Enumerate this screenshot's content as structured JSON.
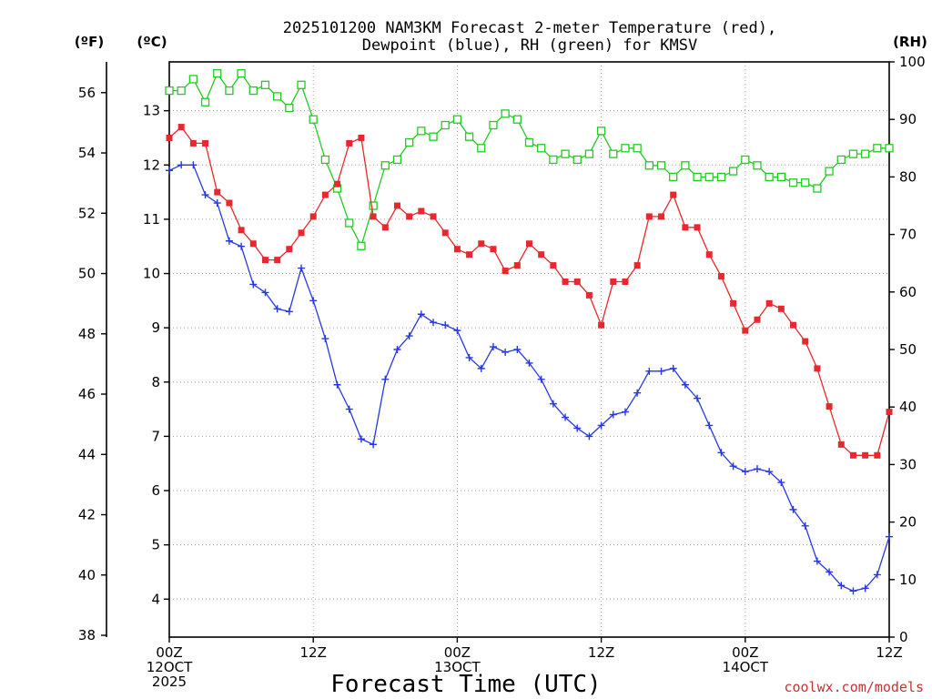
{
  "chart_data": {
    "type": "line",
    "title_line1": "2025101200 NAM3KM Forecast 2-meter Temperature (red),",
    "title_line2": "Dewpoint (blue), RH (green) for KMSV",
    "xlabel": "Forecast Time (UTC)",
    "credit": "coolwx.com/models",
    "units": {
      "fahrenheit": "(ºF)",
      "celsius": "(ºC)",
      "rh": "(RH)"
    },
    "colors": {
      "temperature": "#e8282e",
      "dewpoint": "#2838e0",
      "rh": "#22cc22"
    },
    "x_range_hours": [
      0,
      60
    ],
    "x_ticks": [
      {
        "hour": 0,
        "lines": [
          "00Z",
          "12OCT",
          "2025"
        ]
      },
      {
        "hour": 12,
        "lines": [
          "12Z"
        ]
      },
      {
        "hour": 24,
        "lines": [
          "00Z",
          "13OCT"
        ]
      },
      {
        "hour": 36,
        "lines": [
          "12Z"
        ]
      },
      {
        "hour": 48,
        "lines": [
          "00Z",
          "14OCT"
        ]
      },
      {
        "hour": 60,
        "lines": [
          "12Z"
        ]
      }
    ],
    "y_celsius_range": [
      3.3,
      13.9
    ],
    "y_celsius_ticks": [
      "4",
      "5",
      "6",
      "7",
      "8",
      "9",
      "10",
      "11",
      "12",
      "13"
    ],
    "y_fahrenheit_ticks": [
      "38",
      "40",
      "42",
      "44",
      "46",
      "48",
      "50",
      "52",
      "54",
      "56"
    ],
    "y_rh_range": [
      0,
      100
    ],
    "y_rh_ticks": [
      "0",
      "10",
      "20",
      "30",
      "40",
      "50",
      "60",
      "70",
      "80",
      "90",
      "100"
    ],
    "series": [
      {
        "name": "Temperature",
        "unit": "C",
        "color_key": "temperature",
        "marker": "filled-square",
        "hours": [
          0,
          1,
          2,
          3,
          4,
          5,
          6,
          7,
          8,
          9,
          10,
          11,
          12,
          13,
          14,
          15,
          16,
          17,
          18,
          19,
          20,
          21,
          22,
          23,
          24,
          25,
          26,
          27,
          28,
          29,
          30,
          31,
          32,
          33,
          34,
          35,
          36,
          37,
          38,
          39,
          40,
          41,
          42,
          43,
          44,
          45,
          46,
          47,
          48,
          49,
          50,
          51,
          52,
          53,
          54,
          55,
          56,
          57,
          58,
          59,
          60
        ],
        "values": [
          12.5,
          12.7,
          12.4,
          12.4,
          11.5,
          11.3,
          10.8,
          10.55,
          10.25,
          10.25,
          10.45,
          10.75,
          11.05,
          11.45,
          11.65,
          12.4,
          12.5,
          11.05,
          10.85,
          11.25,
          11.05,
          11.15,
          11.05,
          10.75,
          10.45,
          10.35,
          10.55,
          10.45,
          10.05,
          10.15,
          10.55,
          10.35,
          10.15,
          9.85,
          9.85,
          9.6,
          9.05,
          9.85,
          9.85,
          10.15,
          11.05,
          11.05,
          11.45,
          10.85,
          10.85,
          10.35,
          9.95,
          9.45,
          8.95,
          9.15,
          9.45,
          9.35,
          9.05,
          8.75,
          8.25,
          7.55,
          6.85,
          6.65,
          6.65,
          6.65,
          7.45
        ]
      },
      {
        "name": "Dewpoint",
        "unit": "C",
        "color_key": "dewpoint",
        "marker": "plus",
        "hours": [
          0,
          1,
          2,
          3,
          4,
          5,
          6,
          7,
          8,
          9,
          10,
          11,
          12,
          13,
          14,
          15,
          16,
          17,
          18,
          19,
          20,
          21,
          22,
          23,
          24,
          25,
          26,
          27,
          28,
          29,
          30,
          31,
          32,
          33,
          34,
          35,
          36,
          37,
          38,
          39,
          40,
          41,
          42,
          43,
          44,
          45,
          46,
          47,
          48,
          49,
          50,
          51,
          52,
          53,
          54,
          55,
          56,
          57,
          58,
          59,
          60
        ],
        "values": [
          11.9,
          12.0,
          12.0,
          11.45,
          11.3,
          10.6,
          10.5,
          9.8,
          9.65,
          9.35,
          9.3,
          10.1,
          9.5,
          8.8,
          7.95,
          7.5,
          6.95,
          6.85,
          8.05,
          8.6,
          8.85,
          9.25,
          9.1,
          9.05,
          8.95,
          8.45,
          8.25,
          8.65,
          8.55,
          8.6,
          8.35,
          8.05,
          7.6,
          7.35,
          7.15,
          7.0,
          7.2,
          7.4,
          7.45,
          7.8,
          8.2,
          8.2,
          8.25,
          7.95,
          7.7,
          7.2,
          6.7,
          6.45,
          6.35,
          6.4,
          6.35,
          6.15,
          5.65,
          5.35,
          4.7,
          4.5,
          4.25,
          4.15,
          4.2,
          4.45,
          5.15
        ]
      },
      {
        "name": "Relative Humidity",
        "unit": "%",
        "color_key": "rh",
        "marker": "open-square",
        "hours": [
          0,
          1,
          2,
          3,
          4,
          5,
          6,
          7,
          8,
          9,
          10,
          11,
          12,
          13,
          14,
          15,
          16,
          17,
          18,
          19,
          20,
          21,
          22,
          23,
          24,
          25,
          26,
          27,
          28,
          29,
          30,
          31,
          32,
          33,
          34,
          35,
          36,
          37,
          38,
          39,
          40,
          41,
          42,
          43,
          44,
          45,
          46,
          47,
          48,
          49,
          50,
          51,
          52,
          53,
          54,
          55,
          56,
          57,
          58,
          59,
          60
        ],
        "values": [
          95,
          95,
          97,
          93,
          98,
          95,
          98,
          95,
          96,
          94,
          92,
          96,
          90,
          83,
          78,
          72,
          68,
          75,
          82,
          83,
          86,
          88,
          87,
          89,
          90,
          87,
          85,
          89,
          91,
          90,
          86,
          85,
          83,
          84,
          83,
          84,
          88,
          84,
          85,
          85,
          82,
          82,
          80,
          82,
          80,
          80,
          80,
          81,
          83,
          82,
          80,
          80,
          79,
          79,
          78,
          81,
          83,
          84,
          84,
          85,
          85
        ]
      }
    ]
  }
}
